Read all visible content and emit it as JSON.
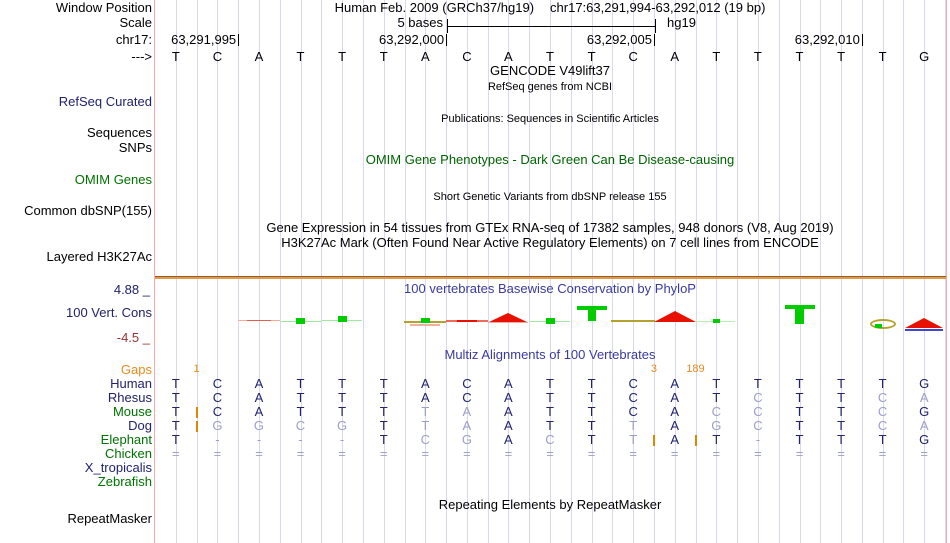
{
  "palette": {
    "title_blue": "#3a3a9e",
    "label_navy": "#22226e",
    "label_green": "#007200",
    "omim_green": "#006400",
    "gaps_orange": "#ea8a1e",
    "insert_orange": "#dd8800",
    "seq_dark": "#22226e",
    "seq_light": "#9e9ecb",
    "grid_line": "#d8d8ee",
    "pink_line": "#ffaaaa",
    "h3k27ac_line": "#e09a4a",
    "cons_red": "#e81000",
    "cons_green": "#00cc00",
    "cons_olive": "#b5a22e",
    "cons_blue": "#4444cc",
    "maroon": "#993333"
  },
  "header": {
    "assembly_title": "Human Feb. 2009 (GRCh37/hg19)",
    "position_title": "chr17:63,291,994-63,292,012 (19 bp)",
    "window_position_label": "Window Position",
    "scale_label": "Scale",
    "scale_text": "5 bases",
    "scale_assembly": "hg19",
    "chrom_label": "chr17:",
    "strand_arrow": "--->",
    "coordinate_ticks": [
      {
        "label": "63,291,995",
        "boundary_index": 2
      },
      {
        "label": "63,292,000",
        "boundary_index": 7
      },
      {
        "label": "63,292,005",
        "boundary_index": 12
      },
      {
        "label": "63,292,010",
        "boundary_index": 17
      }
    ]
  },
  "sequence": {
    "bases": [
      "T",
      "C",
      "A",
      "T",
      "T",
      "T",
      "A",
      "C",
      "A",
      "T",
      "T",
      "C",
      "A",
      "T",
      "T",
      "T",
      "T",
      "T",
      "G"
    ]
  },
  "tracks": {
    "gencode": {
      "title": "GENCODE V49lift37"
    },
    "refseq": {
      "subtitle": "RefSeq genes from NCBI",
      "left_label": "RefSeq Curated"
    },
    "publications": {
      "title": "Publications: Sequences in Scientific Articles",
      "left_label_1": "Sequences",
      "left_label_2": "SNPs"
    },
    "omim": {
      "title": "OMIM Gene Phenotypes - Dark Green Can Be Disease-causing",
      "left_label": "OMIM Genes"
    },
    "dbsnp": {
      "title": "Short Genetic Variants from dbSNP release 155",
      "left_label": "Common dbSNP(155)"
    },
    "gtex": {
      "title": "Gene Expression in 54 tissues from GTEx RNA-seq of 17382 samples, 948 donors (V8, Aug 2019)"
    },
    "h3k27ac": {
      "title": "H3K27Ac Mark (Often Found Near Active Regulatory Elements) on 7 cell lines from ENCODE",
      "left_label": "Layered H3K27Ac"
    },
    "phylop": {
      "title": "100 vertebrates Basewise Conservation by PhyloP",
      "left_label": "100 Vert. Cons",
      "scale_max": "4.88 _",
      "scale_min": "-4.5 _",
      "marks": [
        {
          "col": 3,
          "type": "faint_red_line"
        },
        {
          "col": 4,
          "type": "green_line_dot"
        },
        {
          "col": 5,
          "type": "green_line_dot_high"
        },
        {
          "col": 7,
          "type": "olive_line_green_dot"
        },
        {
          "col": 8,
          "type": "red_line"
        },
        {
          "col": 9,
          "type": "red_peak_small"
        },
        {
          "col": 10,
          "type": "green_line_dot"
        },
        {
          "col": 11,
          "type": "green_tbar"
        },
        {
          "col": 12,
          "type": "olive_line"
        },
        {
          "col": 13,
          "type": "red_peak"
        },
        {
          "col": 14,
          "type": "green_line_dot_faint"
        },
        {
          "col": 16,
          "type": "green_tbar_tall"
        },
        {
          "col": 18,
          "type": "olive_ellipse_green_dot"
        },
        {
          "col": 19,
          "type": "red_peak_low_blue"
        }
      ]
    },
    "multiz": {
      "title": "Multiz Alignments of 100 Vertebrates",
      "gaps_label": "Gaps",
      "gap_counts": [
        {
          "text": "1",
          "boundary_index": 1
        },
        {
          "text": "3",
          "boundary_index": 12
        },
        {
          "text": "189",
          "boundary_index": 13
        }
      ],
      "rows": [
        {
          "name": "Human",
          "label_color": "navy",
          "seq": "TCATTTACATTCATTTTTG",
          "inserts": []
        },
        {
          "name": "Rhesus",
          "label_color": "navy",
          "seq": "TCATTTACATTCATcTTca",
          "inserts": []
        },
        {
          "name": "Mouse",
          "label_color": "green",
          "seq": "TCATTTtaATTCAccTTcG",
          "inserts": [
            1
          ]
        },
        {
          "name": "Dog",
          "label_color": "navy",
          "seq": "TggcgTtaATTtAgcTTca",
          "inserts": [
            1
          ]
        },
        {
          "name": "Elephant",
          "label_color": "green",
          "seq": "T----TcgAcTtAT-TTTG",
          "inserts": [
            12,
            13
          ]
        },
        {
          "name": "Chicken",
          "label_color": "green",
          "seq": "===================",
          "inserts": []
        },
        {
          "name": "X_tropicalis",
          "label_color": "navy",
          "seq": "",
          "inserts": []
        },
        {
          "name": "Zebrafish",
          "label_color": "green",
          "seq": "",
          "inserts": []
        }
      ]
    },
    "repeatmasker": {
      "title": "Repeating Elements by RepeatMasker",
      "left_label": "RepeatMasker"
    }
  }
}
